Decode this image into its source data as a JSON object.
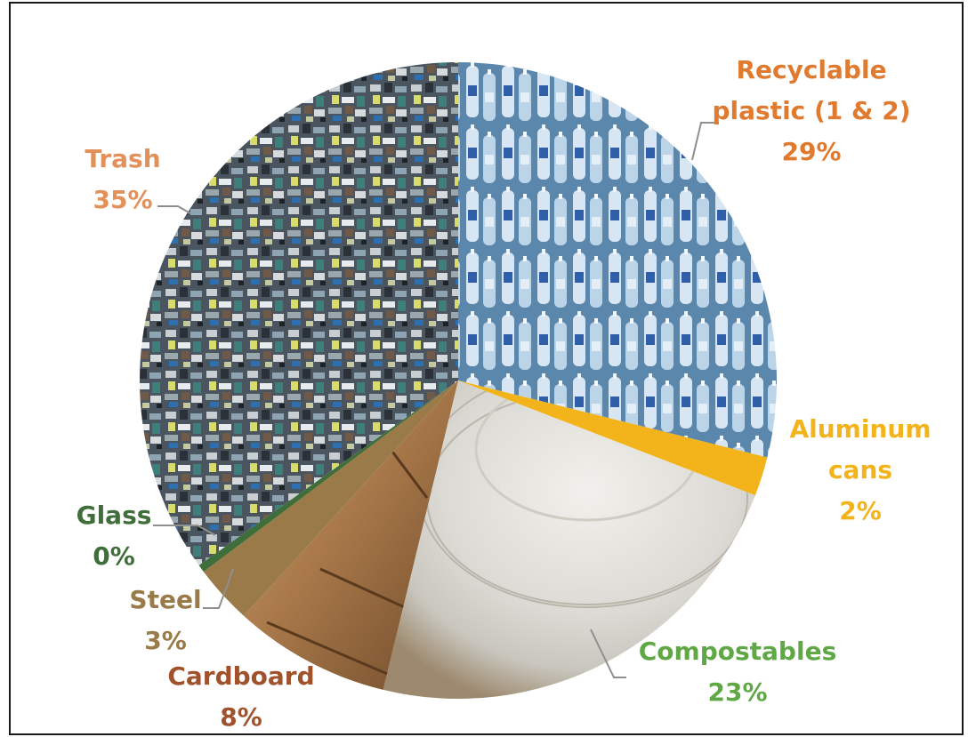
{
  "chart_data": {
    "type": "pie",
    "title": "",
    "slices": [
      {
        "name": "Recyclable plastic (1 & 2)",
        "label_lines": [
          "Recyclable",
          "plastic (1 & 2)"
        ],
        "percent_label": "29%",
        "value": 29,
        "color": "#e07a2e",
        "texture": "plastic-bottles"
      },
      {
        "name": "Aluminum cans",
        "label_lines": [
          "Aluminum",
          "cans"
        ],
        "percent_label": "2%",
        "value": 2,
        "color": "#f2b31b",
        "texture": "solid"
      },
      {
        "name": "Compostables",
        "label_lines": [
          "Compostables"
        ],
        "percent_label": "23%",
        "value": 23,
        "color": "#5fa845",
        "texture": "paper-plates"
      },
      {
        "name": "Cardboard",
        "label_lines": [
          "Cardboard"
        ],
        "percent_label": "8%",
        "value": 8,
        "color": "#a0522d",
        "texture": "cardboard-box"
      },
      {
        "name": "Steel",
        "label_lines": [
          "Steel"
        ],
        "percent_label": "3%",
        "value": 3,
        "color": "#9a7a48",
        "texture": "solid"
      },
      {
        "name": "Glass",
        "label_lines": [
          "Glass"
        ],
        "percent_label": "0%",
        "value": 0.4,
        "color": "#3f6e3a",
        "texture": "solid"
      },
      {
        "name": "Trash",
        "label_lines": [
          "Trash"
        ],
        "percent_label": "35%",
        "value": 35,
        "color": "#e3915a",
        "texture": "trash-heap"
      }
    ]
  }
}
